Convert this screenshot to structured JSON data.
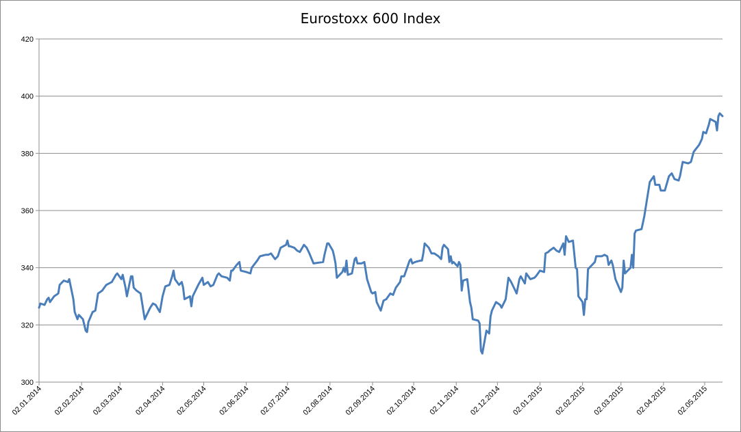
{
  "chart_data": {
    "type": "line",
    "title": "Eurostoxx 600 Index",
    "xlabel": "",
    "ylabel": "",
    "ylim": [
      300,
      420
    ],
    "yticks": [
      300,
      320,
      340,
      360,
      380,
      400,
      420
    ],
    "x_start": "2014-01-02",
    "x_end": "2015-05-15",
    "xtick_dates": [
      "2014-01-02",
      "2014-02-02",
      "2014-03-02",
      "2014-04-02",
      "2014-05-02",
      "2014-06-02",
      "2014-07-02",
      "2014-08-02",
      "2014-09-02",
      "2014-10-02",
      "2014-11-02",
      "2014-12-02",
      "2015-01-02",
      "2015-02-02",
      "2015-03-02",
      "2015-04-02",
      "2015-05-02"
    ],
    "xtick_labels": [
      "02.01.2014",
      "02.02.2014",
      "02.03.2014",
      "02.04.2014",
      "02.05.2014",
      "02.06.2014",
      "02.07.2014",
      "02.08.2014",
      "02.09.2014",
      "02.10.2014",
      "02.11.2014",
      "02.12.2014",
      "02.01.2015",
      "02.02.2015",
      "02.03.2015",
      "02.04.2015",
      "02.05.2015"
    ],
    "grid": true,
    "legend": "none",
    "series": [
      {
        "color": "#4a7ebb",
        "points": [
          [
            "2014-01-02",
            326
          ],
          [
            "2014-01-03",
            327.5
          ],
          [
            "2014-01-06",
            327
          ],
          [
            "2014-01-08",
            329
          ],
          [
            "2014-01-09",
            329.5
          ],
          [
            "2014-01-10",
            328
          ],
          [
            "2014-01-13",
            330
          ],
          [
            "2014-01-16",
            331
          ],
          [
            "2014-01-17",
            334
          ],
          [
            "2014-01-20",
            335.5
          ],
          [
            "2014-01-23",
            335
          ],
          [
            "2014-01-24",
            336
          ],
          [
            "2014-01-27",
            329
          ],
          [
            "2014-01-28",
            324.5
          ],
          [
            "2014-01-30",
            322
          ],
          [
            "2014-01-31",
            323.5
          ],
          [
            "2014-02-03",
            322
          ],
          [
            "2014-02-05",
            318
          ],
          [
            "2014-02-06",
            317.5
          ],
          [
            "2014-02-07",
            321
          ],
          [
            "2014-02-10",
            324.5
          ],
          [
            "2014-02-12",
            325
          ],
          [
            "2014-02-14",
            331
          ],
          [
            "2014-02-17",
            332
          ],
          [
            "2014-02-20",
            334
          ],
          [
            "2014-02-24",
            335
          ],
          [
            "2014-02-27",
            337.5
          ],
          [
            "2014-02-28",
            338
          ],
          [
            "2014-03-03",
            336
          ],
          [
            "2014-03-04",
            337.5
          ],
          [
            "2014-03-06",
            333
          ],
          [
            "2014-03-07",
            330
          ],
          [
            "2014-03-10",
            337
          ],
          [
            "2014-03-11",
            337
          ],
          [
            "2014-03-12",
            333
          ],
          [
            "2014-03-14",
            332
          ],
          [
            "2014-03-17",
            331
          ],
          [
            "2014-03-18",
            328
          ],
          [
            "2014-03-20",
            322
          ],
          [
            "2014-03-24",
            326
          ],
          [
            "2014-03-26",
            327.5
          ],
          [
            "2014-03-28",
            327
          ],
          [
            "2014-03-31",
            324.5
          ],
          [
            "2014-04-02",
            330
          ],
          [
            "2014-04-04",
            333.5
          ],
          [
            "2014-04-07",
            334
          ],
          [
            "2014-04-09",
            337
          ],
          [
            "2014-04-10",
            339
          ],
          [
            "2014-04-11",
            336
          ],
          [
            "2014-04-14",
            334
          ],
          [
            "2014-04-16",
            335
          ],
          [
            "2014-04-17",
            333
          ],
          [
            "2014-04-18",
            329
          ],
          [
            "2014-04-22",
            330
          ],
          [
            "2014-04-23",
            326.5
          ],
          [
            "2014-04-24",
            330
          ],
          [
            "2014-04-28",
            334
          ],
          [
            "2014-05-01",
            336.5
          ],
          [
            "2014-05-02",
            334
          ],
          [
            "2014-05-05",
            335
          ],
          [
            "2014-05-07",
            333.5
          ],
          [
            "2014-05-09",
            334
          ],
          [
            "2014-05-12",
            337.5
          ],
          [
            "2014-05-13",
            338
          ],
          [
            "2014-05-15",
            337
          ],
          [
            "2014-05-19",
            336.5
          ],
          [
            "2014-05-21",
            335.5
          ],
          [
            "2014-05-22",
            339
          ],
          [
            "2014-05-23",
            339
          ],
          [
            "2014-05-26",
            341
          ],
          [
            "2014-05-28",
            342
          ],
          [
            "2014-05-29",
            339
          ],
          [
            "2014-06-02",
            338.5
          ],
          [
            "2014-06-05",
            338
          ],
          [
            "2014-06-06",
            340
          ],
          [
            "2014-06-10",
            342.5
          ],
          [
            "2014-06-12",
            344
          ],
          [
            "2014-06-16",
            344.5
          ],
          [
            "2014-06-18",
            344.5
          ],
          [
            "2014-06-20",
            345
          ],
          [
            "2014-06-23",
            343
          ],
          [
            "2014-06-25",
            344
          ],
          [
            "2014-06-27",
            347
          ],
          [
            "2014-07-01",
            348
          ],
          [
            "2014-07-02",
            349.5
          ],
          [
            "2014-07-03",
            347.5
          ],
          [
            "2014-07-04",
            347.5
          ],
          [
            "2014-07-07",
            347
          ],
          [
            "2014-07-09",
            346
          ],
          [
            "2014-07-11",
            345.5
          ],
          [
            "2014-07-14",
            348
          ],
          [
            "2014-07-16",
            347
          ],
          [
            "2014-07-17",
            346
          ],
          [
            "2014-07-18",
            345
          ],
          [
            "2014-07-21",
            341.5
          ],
          [
            "2014-07-28",
            342
          ],
          [
            "2014-07-29",
            344.5
          ],
          [
            "2014-07-31",
            348.5
          ],
          [
            "2014-08-01",
            348.5
          ],
          [
            "2014-08-04",
            346
          ],
          [
            "2014-08-05",
            344
          ],
          [
            "2014-08-06",
            341.5
          ],
          [
            "2014-08-07",
            336.5
          ],
          [
            "2014-08-11",
            338.5
          ],
          [
            "2014-08-12",
            340
          ],
          [
            "2014-08-13",
            338.5
          ],
          [
            "2014-08-14",
            342.5
          ],
          [
            "2014-08-15",
            337.5
          ],
          [
            "2014-08-18",
            338
          ],
          [
            "2014-08-20",
            343
          ],
          [
            "2014-08-21",
            343.5
          ],
          [
            "2014-08-22",
            341.5
          ],
          [
            "2014-08-25",
            341.5
          ],
          [
            "2014-08-27",
            342
          ],
          [
            "2014-08-29",
            336
          ],
          [
            "2014-09-01",
            331.5
          ],
          [
            "2014-09-02",
            331
          ],
          [
            "2014-09-04",
            331.5
          ],
          [
            "2014-09-05",
            328
          ],
          [
            "2014-09-08",
            325
          ],
          [
            "2014-09-10",
            328.5
          ],
          [
            "2014-09-12",
            329
          ],
          [
            "2014-09-15",
            331
          ],
          [
            "2014-09-17",
            330.5
          ],
          [
            "2014-09-19",
            333
          ],
          [
            "2014-09-22",
            335
          ],
          [
            "2014-09-23",
            337
          ],
          [
            "2014-09-25",
            337
          ],
          [
            "2014-09-29",
            342.5
          ],
          [
            "2014-09-30",
            343
          ],
          [
            "2014-10-01",
            341.5
          ],
          [
            "2014-10-03",
            342
          ],
          [
            "2014-10-07",
            342.5
          ],
          [
            "2014-10-08",
            342.5
          ],
          [
            "2014-10-09",
            345
          ],
          [
            "2014-10-10",
            348.5
          ],
          [
            "2014-10-13",
            347
          ],
          [
            "2014-10-14",
            346
          ],
          [
            "2014-10-15",
            345
          ],
          [
            "2014-10-17",
            345
          ],
          [
            "2014-10-20",
            344
          ],
          [
            "2014-10-22",
            343
          ],
          [
            "2014-10-23",
            347
          ],
          [
            "2014-10-24",
            348
          ],
          [
            "2014-10-27",
            346.5
          ],
          [
            "2014-10-28",
            342
          ],
          [
            "2014-10-29",
            344
          ],
          [
            "2014-10-30",
            341.5
          ],
          [
            "2014-10-31",
            342
          ],
          [
            "2014-11-03",
            340.5
          ],
          [
            "2014-11-04",
            342
          ],
          [
            "2014-11-05",
            341
          ],
          [
            "2014-11-06",
            332
          ],
          [
            "2014-11-07",
            335.5
          ],
          [
            "2014-11-10",
            336
          ],
          [
            "2014-11-12",
            328
          ],
          [
            "2014-11-13",
            326
          ],
          [
            "2014-11-14",
            322
          ],
          [
            "2014-11-18",
            321.5
          ],
          [
            "2014-11-19",
            320.5
          ],
          [
            "2014-11-20",
            311
          ],
          [
            "2014-11-21",
            310
          ],
          [
            "2014-11-24",
            318
          ],
          [
            "2014-11-26",
            317
          ],
          [
            "2014-11-27",
            323
          ],
          [
            "2014-11-28",
            325
          ],
          [
            "2014-12-01",
            328
          ],
          [
            "2014-12-04",
            327
          ],
          [
            "2014-12-05",
            326
          ],
          [
            "2014-12-08",
            329
          ],
          [
            "2014-12-10",
            336.5
          ],
          [
            "2014-12-12",
            335
          ],
          [
            "2014-12-15",
            332
          ],
          [
            "2014-12-16",
            331
          ],
          [
            "2014-12-18",
            336
          ],
          [
            "2014-12-19",
            337
          ],
          [
            "2014-12-22",
            334.5
          ],
          [
            "2014-12-23",
            338
          ],
          [
            "2014-12-26",
            336
          ],
          [
            "2014-12-29",
            336.5
          ],
          [
            "2014-12-30",
            337
          ],
          [
            "2015-01-02",
            339
          ],
          [
            "2015-01-05",
            338.5
          ],
          [
            "2015-01-06",
            345
          ],
          [
            "2015-01-08",
            345.5
          ],
          [
            "2015-01-09",
            346
          ],
          [
            "2015-01-12",
            347
          ],
          [
            "2015-01-14",
            346
          ],
          [
            "2015-01-16",
            345.5
          ],
          [
            "2015-01-19",
            348.5
          ],
          [
            "2015-01-20",
            344.5
          ],
          [
            "2015-01-21",
            351
          ],
          [
            "2015-01-23",
            349
          ],
          [
            "2015-01-26",
            349.5
          ],
          [
            "2015-01-28",
            340
          ],
          [
            "2015-01-29",
            339.5
          ],
          [
            "2015-01-30",
            330
          ],
          [
            "2015-02-02",
            328
          ],
          [
            "2015-02-03",
            323.5
          ],
          [
            "2015-02-04",
            329
          ],
          [
            "2015-02-05",
            329
          ],
          [
            "2015-02-06",
            339.5
          ],
          [
            "2015-02-09",
            341
          ],
          [
            "2015-02-11",
            342
          ],
          [
            "2015-02-12",
            344
          ],
          [
            "2015-02-16",
            344
          ],
          [
            "2015-02-18",
            344.5
          ],
          [
            "2015-02-20",
            344
          ],
          [
            "2015-02-21",
            341
          ],
          [
            "2015-02-23",
            342.5
          ],
          [
            "2015-02-24",
            341
          ],
          [
            "2015-02-26",
            336
          ],
          [
            "2015-03-02",
            331.5
          ],
          [
            "2015-03-03",
            333
          ],
          [
            "2015-03-04",
            342.5
          ],
          [
            "2015-03-05",
            338
          ],
          [
            "2015-03-06",
            338.5
          ],
          [
            "2015-03-09",
            340
          ],
          [
            "2015-03-10",
            344.5
          ],
          [
            "2015-03-11",
            340
          ],
          [
            "2015-03-12",
            352
          ],
          [
            "2015-03-13",
            353
          ],
          [
            "2015-03-17",
            353.5
          ],
          [
            "2015-03-19",
            358
          ],
          [
            "2015-03-23",
            370
          ],
          [
            "2015-03-26",
            372
          ],
          [
            "2015-03-27",
            369
          ],
          [
            "2015-03-30",
            369
          ],
          [
            "2015-03-31",
            367
          ],
          [
            "2015-04-03",
            367
          ],
          [
            "2015-04-06",
            372
          ],
          [
            "2015-04-08",
            373
          ],
          [
            "2015-04-10",
            371
          ],
          [
            "2015-04-13",
            370.5
          ],
          [
            "2015-04-14",
            372
          ],
          [
            "2015-04-16",
            377
          ],
          [
            "2015-04-20",
            376.5
          ],
          [
            "2015-04-22",
            377
          ],
          [
            "2015-04-24",
            380.5
          ],
          [
            "2015-04-28",
            383
          ],
          [
            "2015-04-30",
            385
          ],
          [
            "2015-05-01",
            387.5
          ],
          [
            "2015-05-03",
            387
          ],
          [
            "2015-05-05",
            390
          ],
          [
            "2015-05-06",
            392
          ],
          [
            "2015-05-08",
            391.5
          ],
          [
            "2015-05-10",
            391
          ],
          [
            "2015-05-11",
            388
          ],
          [
            "2015-05-12",
            393
          ],
          [
            "2015-05-13",
            394
          ],
          [
            "2015-05-14",
            393.5
          ],
          [
            "2015-05-15",
            393
          ]
        ]
      }
    ]
  }
}
